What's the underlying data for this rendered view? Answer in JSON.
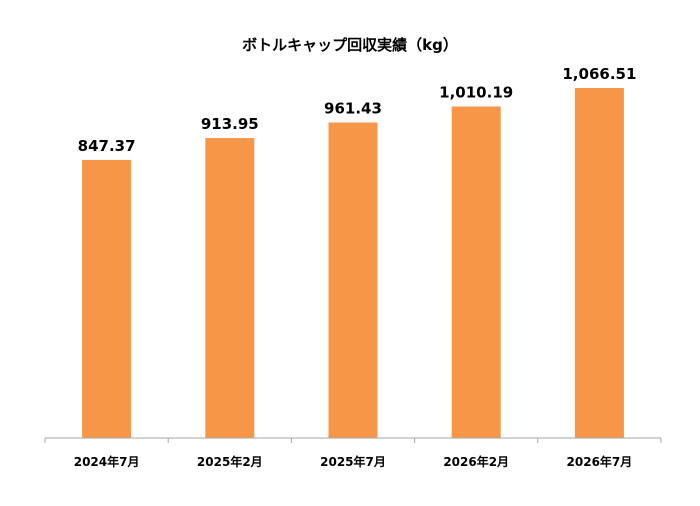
{
  "chart_data": {
    "type": "bar",
    "title": "ボトルキャップ回収実績（kg）",
    "categories": [
      "2024年7月",
      "2025年2月",
      "2025年7月",
      "2026年2月",
      "2026年7月"
    ],
    "values": [
      847.37,
      913.95,
      961.43,
      1010.19,
      1066.51
    ],
    "value_labels": [
      "847.37",
      "913.95",
      "961.43",
      "1,010.19",
      "1,066.51"
    ],
    "xlabel": "",
    "ylabel": "",
    "ylim": [
      0,
      1066.51
    ],
    "grid": false,
    "legend": "none",
    "bar_color": "#F79646",
    "axis_color": "#A6A6A6"
  }
}
